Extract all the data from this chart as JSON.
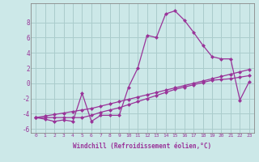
{
  "xlabel": "Windchill (Refroidissement éolien,°C)",
  "xlim": [
    -0.5,
    23.5
  ],
  "ylim": [
    -6.5,
    10.5
  ],
  "xticks": [
    0,
    1,
    2,
    3,
    4,
    5,
    6,
    7,
    8,
    9,
    10,
    11,
    12,
    13,
    14,
    15,
    16,
    17,
    18,
    19,
    20,
    21,
    22,
    23
  ],
  "yticks": [
    -6,
    -4,
    -2,
    0,
    2,
    4,
    6,
    8
  ],
  "background_color": "#cce8e8",
  "line_color": "#993399",
  "grid_color": "#aacccc",
  "curve1_x": [
    0,
    1,
    2,
    3,
    4,
    5,
    6,
    7,
    8,
    9,
    10,
    11,
    12,
    13,
    14,
    15,
    16,
    17,
    18,
    19,
    20,
    21,
    22,
    23
  ],
  "curve1_y": [
    -4.5,
    -4.7,
    -5.0,
    -4.8,
    -5.0,
    -1.3,
    -5.0,
    -4.2,
    -4.2,
    -4.2,
    -0.5,
    2.0,
    6.3,
    6.0,
    9.1,
    9.5,
    8.3,
    6.7,
    5.0,
    3.5,
    3.2,
    3.2,
    -2.2,
    0.2
  ],
  "curve2_x": [
    0,
    1,
    2,
    3,
    4,
    5,
    6,
    7,
    8,
    9,
    10,
    11,
    12,
    13,
    14,
    15,
    16,
    17,
    18,
    19,
    20,
    21,
    22,
    23
  ],
  "curve2_y": [
    -4.5,
    -4.5,
    -4.5,
    -4.5,
    -4.5,
    -4.5,
    -4.2,
    -3.8,
    -3.5,
    -3.2,
    -2.8,
    -2.4,
    -2.0,
    -1.6,
    -1.2,
    -0.8,
    -0.5,
    -0.2,
    0.1,
    0.4,
    0.5,
    0.6,
    0.8,
    1.0
  ],
  "curve3_x": [
    0,
    1,
    2,
    3,
    4,
    5,
    6,
    7,
    8,
    9,
    10,
    11,
    12,
    13,
    14,
    15,
    16,
    17,
    18,
    19,
    20,
    21,
    22,
    23
  ],
  "curve3_y": [
    -4.5,
    -4.3,
    -4.1,
    -3.9,
    -3.7,
    -3.5,
    -3.3,
    -3.0,
    -2.7,
    -2.4,
    -2.1,
    -1.8,
    -1.5,
    -1.2,
    -0.9,
    -0.6,
    -0.3,
    0.0,
    0.3,
    0.6,
    0.9,
    1.2,
    1.5,
    1.8
  ]
}
